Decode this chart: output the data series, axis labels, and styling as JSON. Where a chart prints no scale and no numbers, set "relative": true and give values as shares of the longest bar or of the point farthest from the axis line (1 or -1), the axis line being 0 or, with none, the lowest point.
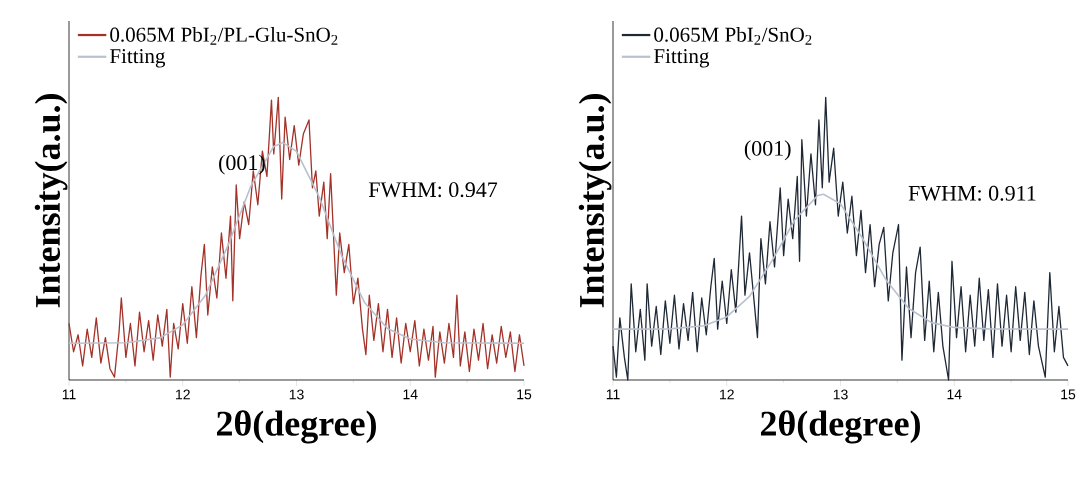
{
  "chart_data": [
    {
      "type": "line",
      "relative": true,
      "xlabel": "2θ(degree)",
      "ylabel": "Intensity(a.u.)",
      "xlim": [
        11,
        15
      ],
      "xticks": [
        11,
        12,
        13,
        14,
        15
      ],
      "legend": "top left",
      "annotations": [
        "(001)",
        "FWHM: 0.947"
      ],
      "series": [
        {
          "name": "0.065M PbI$_{2}$/PL-Glu-SnO$_{2}$",
          "color": "#a33229",
          "x": [
            11.0,
            11.04,
            11.08,
            11.12,
            11.16,
            11.2,
            11.24,
            11.28,
            11.32,
            11.36,
            11.4,
            11.44,
            11.46,
            11.5,
            11.54,
            11.58,
            11.62,
            11.66,
            11.7,
            11.74,
            11.78,
            11.82,
            11.86,
            11.89,
            11.92,
            11.96,
            12.0,
            12.04,
            12.08,
            12.12,
            12.16,
            12.19,
            12.22,
            12.26,
            12.3,
            12.34,
            12.38,
            12.42,
            12.44,
            12.47,
            12.5,
            12.54,
            12.58,
            12.62,
            12.66,
            12.7,
            12.74,
            12.78,
            12.8,
            12.84,
            12.87,
            12.9,
            12.94,
            12.98,
            13.02,
            13.06,
            13.11,
            13.14,
            13.17,
            13.2,
            13.24,
            13.27,
            13.3,
            13.35,
            13.38,
            13.42,
            13.46,
            13.5,
            13.54,
            13.58,
            13.61,
            13.64,
            13.68,
            13.72,
            13.76,
            13.8,
            13.84,
            13.88,
            13.92,
            13.96,
            14.0,
            14.04,
            14.08,
            14.12,
            14.16,
            14.2,
            14.22,
            14.26,
            14.3,
            14.34,
            14.38,
            14.41,
            14.44,
            14.48,
            14.52,
            14.56,
            14.6,
            14.64,
            14.68,
            14.72,
            14.76,
            14.8,
            14.84,
            14.88,
            14.92,
            14.96,
            15.0
          ],
          "values": [
            0.2,
            0.1,
            0.16,
            0.05,
            0.18,
            0.08,
            0.22,
            0.06,
            0.15,
            0.04,
            0.01,
            0.17,
            0.29,
            0.08,
            0.2,
            0.05,
            0.24,
            0.1,
            0.21,
            0.07,
            0.23,
            0.12,
            0.25,
            0.01,
            0.2,
            0.11,
            0.27,
            0.13,
            0.33,
            0.15,
            0.37,
            0.48,
            0.23,
            0.4,
            0.29,
            0.52,
            0.36,
            0.58,
            0.28,
            0.69,
            0.5,
            0.63,
            0.55,
            0.74,
            0.62,
            0.81,
            0.72,
            0.99,
            0.8,
            1.0,
            0.64,
            0.93,
            0.78,
            0.9,
            0.76,
            0.87,
            0.92,
            0.68,
            0.74,
            0.58,
            0.7,
            0.5,
            0.73,
            0.3,
            0.52,
            0.38,
            0.48,
            0.27,
            0.36,
            0.18,
            0.09,
            0.3,
            0.14,
            0.27,
            0.1,
            0.25,
            0.08,
            0.22,
            0.06,
            0.2,
            0.1,
            0.21,
            0.05,
            0.18,
            0.07,
            0.19,
            0.01,
            0.17,
            0.06,
            0.2,
            0.08,
            0.3,
            0.05,
            0.17,
            0.03,
            0.18,
            0.07,
            0.2,
            0.04,
            0.16,
            0.06,
            0.19,
            0.08,
            0.17,
            0.03,
            0.16,
            0.05
          ]
        },
        {
          "name": "Fitting",
          "color": "#b9c0cf",
          "x": [
            11.0,
            11.5,
            11.8,
            12.0,
            12.2,
            12.4,
            12.6,
            12.8,
            12.88,
            13.0,
            13.2,
            13.4,
            13.6,
            13.8,
            14.0,
            14.3,
            15.0
          ],
          "values": [
            0.13,
            0.132,
            0.149,
            0.195,
            0.3,
            0.478,
            0.687,
            0.826,
            0.84,
            0.809,
            0.647,
            0.437,
            0.273,
            0.182,
            0.145,
            0.132,
            0.13
          ]
        }
      ]
    },
    {
      "type": "line",
      "relative": true,
      "xlabel": "2θ(degree)",
      "ylabel": "Intensity(a.u.)",
      "xlim": [
        11,
        15
      ],
      "xticks": [
        11,
        12,
        13,
        14,
        15
      ],
      "legend": "top left",
      "annotations": [
        "(001)",
        "FWHM: 0.911"
      ],
      "series": [
        {
          "name": "0.065M PbI$_{2}$/SnO$_{2}$",
          "color": "#1f2936",
          "x": [
            11.0,
            11.03,
            11.06,
            11.1,
            11.13,
            11.16,
            11.2,
            11.24,
            11.28,
            11.3,
            11.34,
            11.38,
            11.42,
            11.46,
            11.5,
            11.54,
            11.58,
            11.62,
            11.66,
            11.7,
            11.74,
            11.78,
            11.82,
            11.86,
            11.89,
            11.92,
            11.96,
            12.0,
            12.04,
            12.08,
            12.13,
            12.16,
            12.2,
            12.24,
            12.27,
            12.3,
            12.34,
            12.38,
            12.42,
            12.47,
            12.5,
            12.54,
            12.58,
            12.62,
            12.64,
            12.66,
            12.7,
            12.74,
            12.78,
            12.81,
            12.84,
            12.87,
            12.9,
            12.94,
            12.98,
            13.02,
            13.06,
            13.1,
            13.14,
            13.18,
            13.22,
            13.26,
            13.3,
            13.34,
            13.38,
            13.42,
            13.46,
            13.51,
            13.54,
            13.58,
            13.62,
            13.66,
            13.7,
            13.74,
            13.78,
            13.82,
            13.86,
            13.9,
            13.95,
            13.98,
            14.02,
            14.06,
            14.1,
            14.14,
            14.18,
            14.22,
            14.26,
            14.3,
            14.34,
            14.38,
            14.42,
            14.46,
            14.5,
            14.54,
            14.58,
            14.62,
            14.66,
            14.7,
            14.74,
            14.8,
            14.84,
            14.88,
            14.92,
            14.96,
            15.0
          ],
          "values": [
            0.12,
            0.01,
            0.22,
            0.08,
            0.0,
            0.34,
            0.1,
            0.25,
            0.07,
            0.34,
            0.12,
            0.26,
            0.09,
            0.28,
            0.13,
            0.3,
            0.11,
            0.27,
            0.14,
            0.31,
            0.1,
            0.29,
            0.16,
            0.33,
            0.43,
            0.18,
            0.35,
            0.2,
            0.39,
            0.24,
            0.58,
            0.3,
            0.45,
            0.28,
            0.15,
            0.5,
            0.34,
            0.56,
            0.4,
            0.68,
            0.44,
            0.64,
            0.5,
            0.72,
            0.42,
            0.85,
            0.58,
            0.8,
            0.62,
            0.92,
            0.68,
            1.0,
            0.7,
            0.82,
            0.58,
            0.7,
            0.52,
            0.65,
            0.44,
            0.6,
            0.38,
            0.55,
            0.33,
            0.48,
            0.54,
            0.28,
            0.45,
            0.55,
            0.07,
            0.4,
            0.15,
            0.38,
            0.47,
            0.14,
            0.35,
            0.1,
            0.31,
            0.12,
            0.0,
            0.42,
            0.15,
            0.33,
            0.1,
            0.3,
            0.12,
            0.36,
            0.14,
            0.32,
            0.08,
            0.34,
            0.12,
            0.3,
            0.1,
            0.33,
            0.14,
            0.31,
            0.09,
            0.28,
            0.12,
            0.01,
            0.38,
            0.1,
            0.26,
            0.08,
            0.05
          ]
        },
        {
          "name": "Fitting",
          "color": "#b9c0cf",
          "x": [
            11.0,
            11.5,
            11.8,
            12.0,
            12.2,
            12.4,
            12.6,
            12.8,
            12.85,
            13.0,
            13.2,
            13.4,
            13.6,
            13.8,
            14.0,
            14.3,
            15.0
          ],
          "values": [
            0.18,
            0.181,
            0.192,
            0.223,
            0.296,
            0.423,
            0.567,
            0.653,
            0.657,
            0.623,
            0.497,
            0.354,
            0.253,
            0.203,
            0.186,
            0.181,
            0.18
          ]
        }
      ]
    }
  ]
}
